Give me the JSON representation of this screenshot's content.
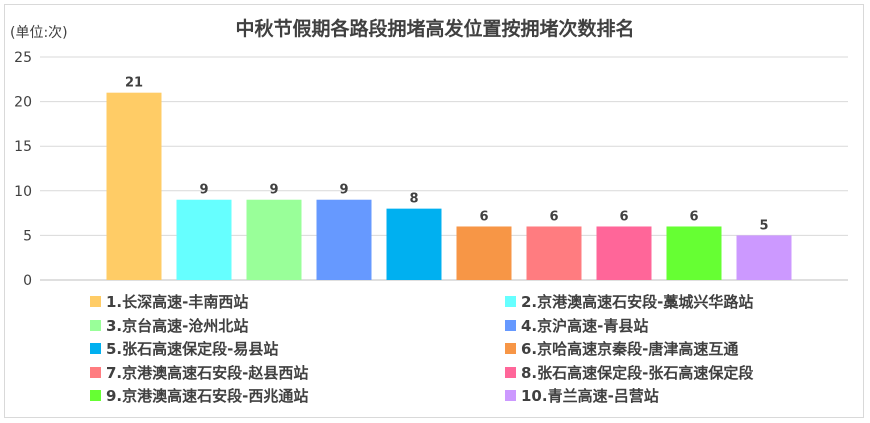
{
  "chart_data": {
    "type": "bar",
    "title": "中秋节假期各路段拥堵高发位置按拥堵次数排名",
    "unit_label": "(单位:次)",
    "ylim": [
      0,
      25
    ],
    "yticks": [
      0,
      5,
      10,
      15,
      20,
      25
    ],
    "grid": true,
    "legend_position": "bottom",
    "categories": [
      "1.长深高速-丰南西站",
      "2.京港澳高速石安段-藁城兴华路站",
      "3.京台高速-沧州北站",
      "4.京沪高速-青县站",
      "5.张石高速保定段-易县站",
      "6.京哈高速京秦段-唐津高速互通",
      "7.京港澳高速石安段-赵县西站",
      "8.张石高速保定段-张石高速保定段",
      "9.京港澳高速石安段-西兆通站",
      "10.青兰高速-吕营站"
    ],
    "values": [
      21,
      9,
      9,
      9,
      8,
      6,
      6,
      6,
      6,
      5
    ],
    "colors": [
      "#FFCC66",
      "#66FFFF",
      "#99FF99",
      "#6699FF",
      "#00B0F0",
      "#F79646",
      "#FF7C80",
      "#FF6699",
      "#66FF33",
      "#CC99FF"
    ]
  }
}
